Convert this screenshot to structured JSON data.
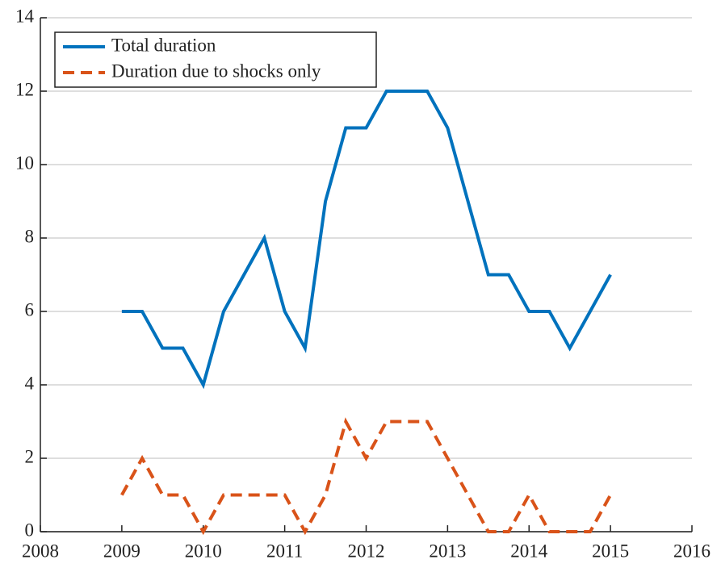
{
  "chart_data": {
    "type": "line",
    "x": [
      2009,
      2009.25,
      2009.5,
      2009.75,
      2010,
      2010.25,
      2010.5,
      2010.75,
      2011,
      2011.25,
      2011.5,
      2011.75,
      2012,
      2012.25,
      2012.5,
      2012.75,
      2013,
      2013.25,
      2013.5,
      2013.75,
      2014,
      2014.25,
      2014.5,
      2014.75,
      2015
    ],
    "series": [
      {
        "name": "Total duration",
        "color": "#0072bd",
        "dash": "solid",
        "values": [
          6,
          6,
          5,
          5,
          4,
          6,
          7,
          8,
          6,
          5,
          9,
          11,
          11,
          12,
          12,
          12,
          11,
          9,
          7,
          7,
          6,
          6,
          5,
          6,
          7
        ]
      },
      {
        "name": "Duration due to shocks only",
        "color": "#d95319",
        "dash": "dashed",
        "values": [
          1,
          2,
          1,
          1,
          0,
          1,
          1,
          1,
          1,
          0,
          1,
          3,
          2,
          3,
          3,
          3,
          2,
          1,
          0,
          0,
          1,
          0,
          0,
          0,
          1
        ]
      }
    ],
    "xlim": [
      2008,
      2016
    ],
    "xticks": [
      2008,
      2009,
      2010,
      2011,
      2012,
      2013,
      2014,
      2015,
      2016
    ],
    "ylim": [
      0,
      14
    ],
    "yticks": [
      0,
      2,
      4,
      6,
      8,
      10,
      12,
      14
    ],
    "grid": true,
    "legend": "upper-left"
  }
}
